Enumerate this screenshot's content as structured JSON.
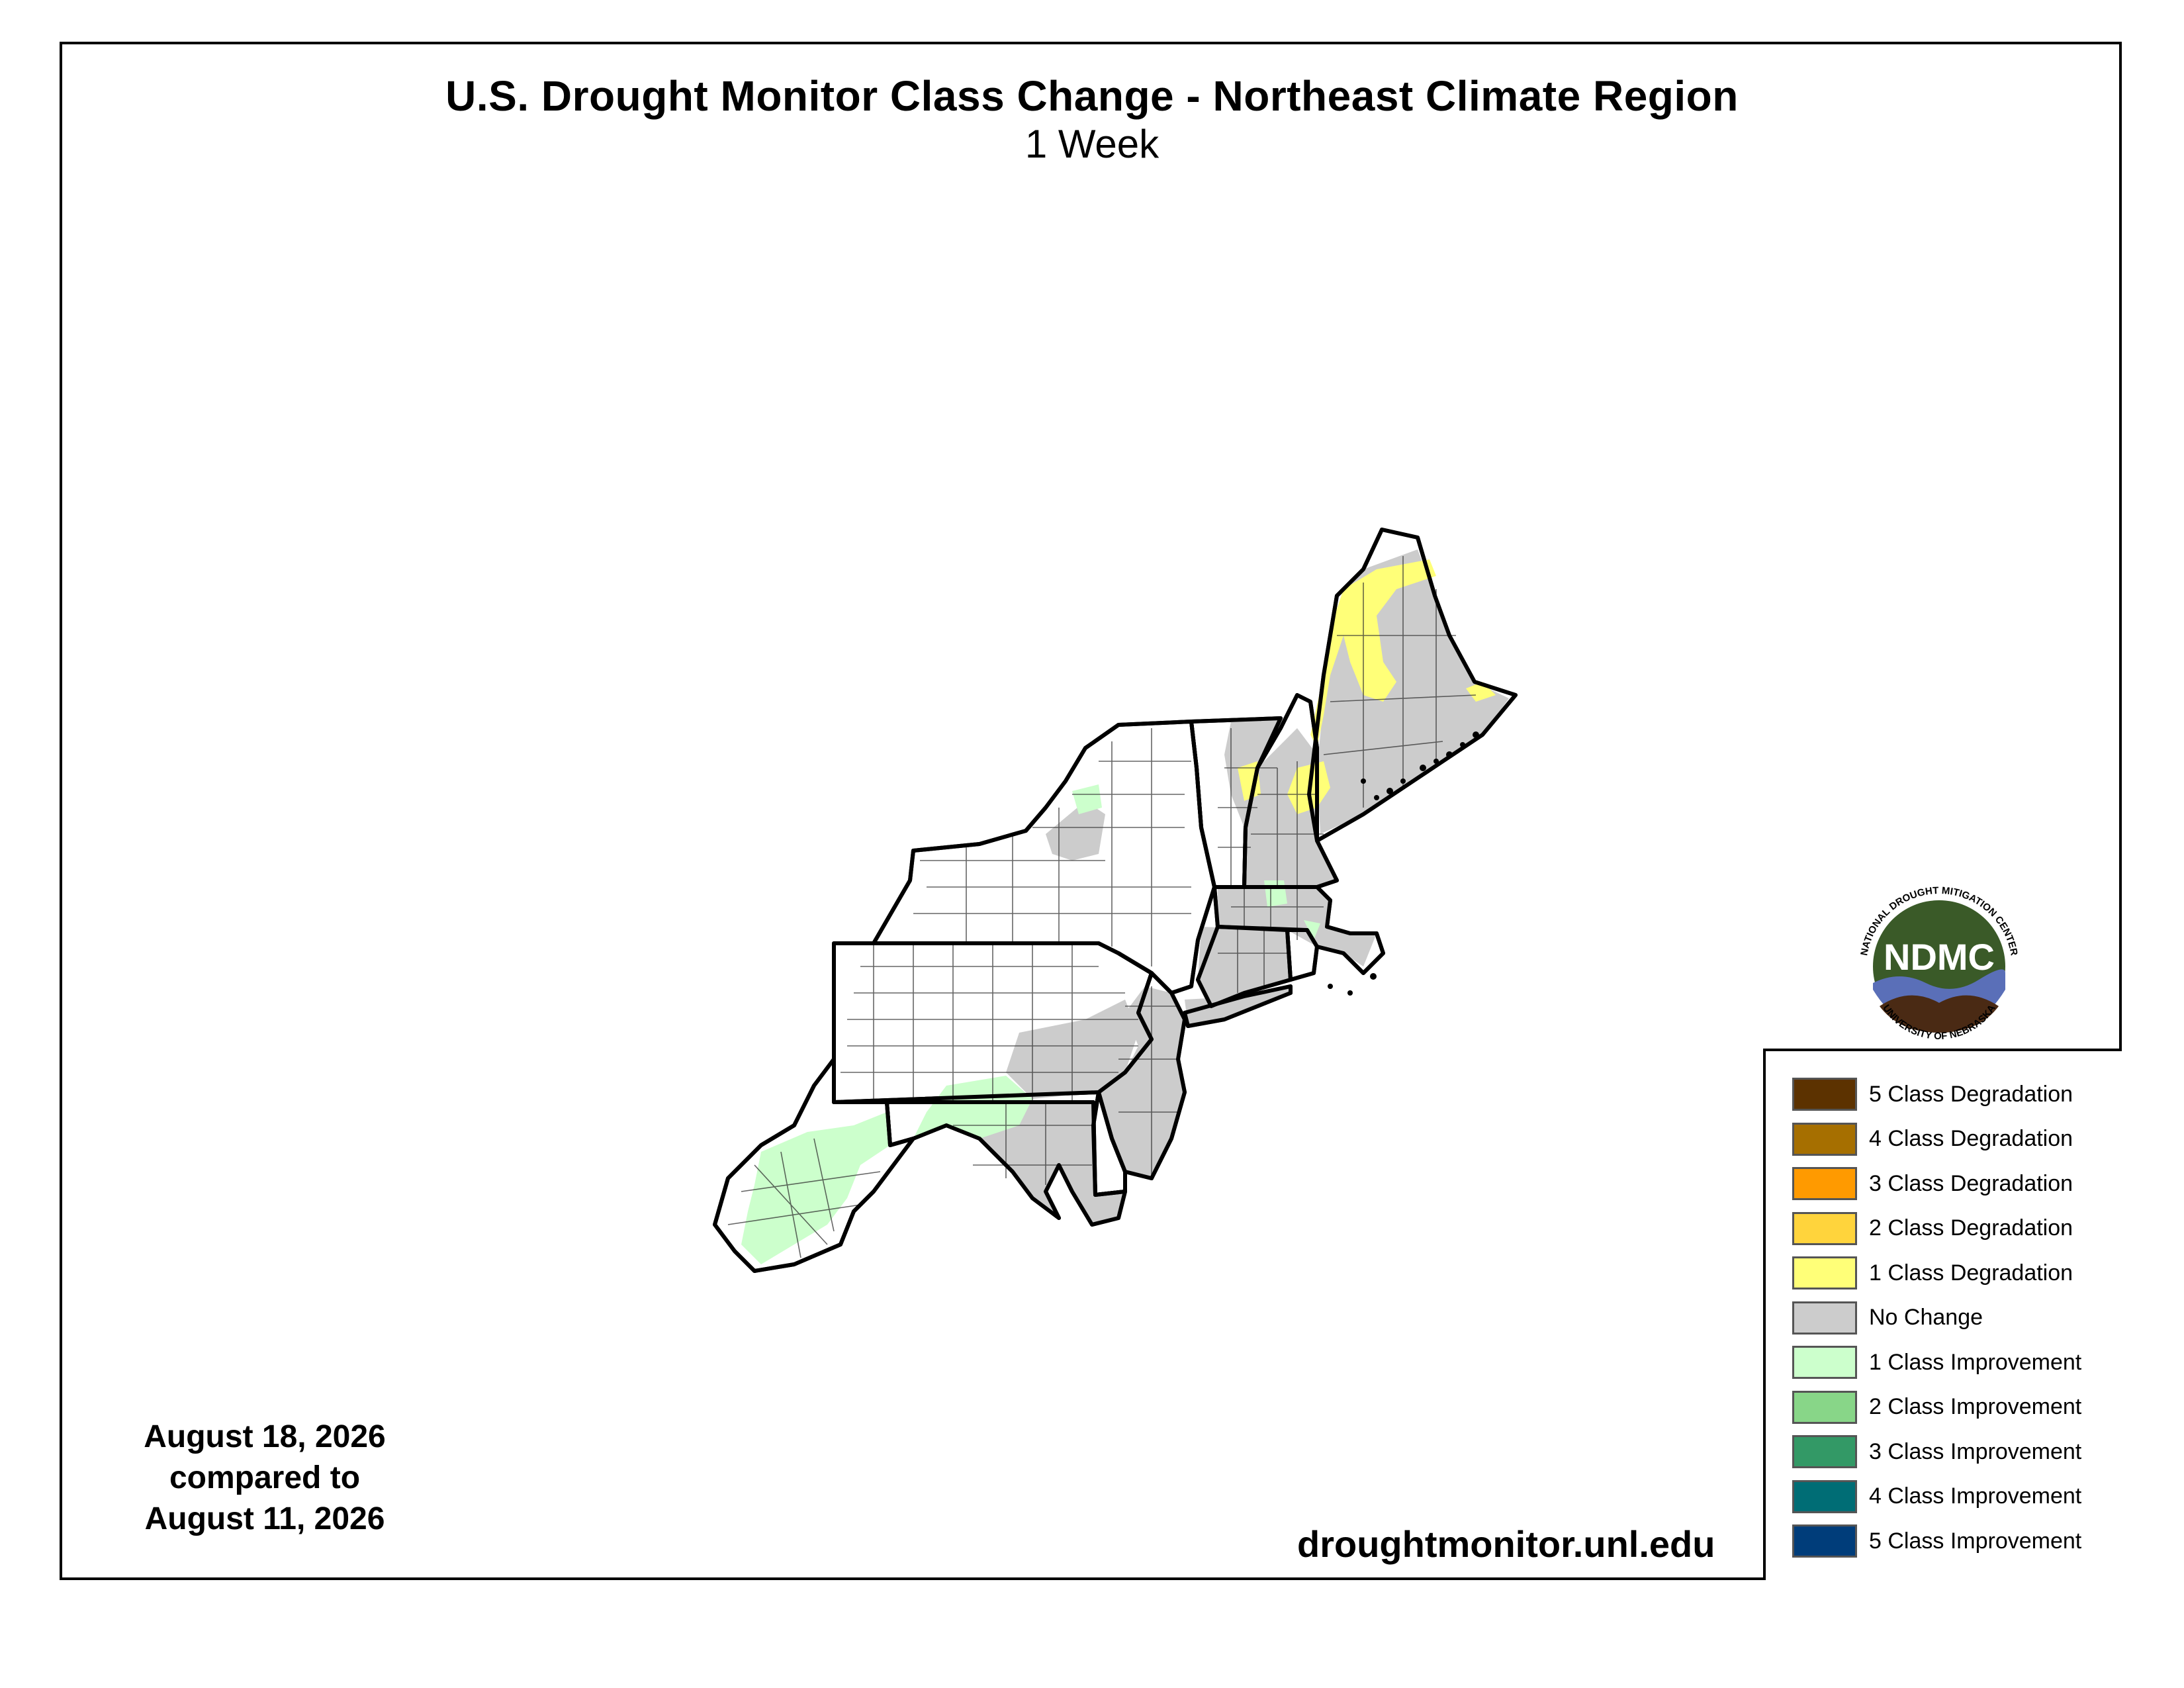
{
  "header": {
    "title": "U.S. Drought Monitor Class Change - Northeast Climate Region",
    "subtitle": "1 Week"
  },
  "dates": {
    "line1": "August 18, 2026",
    "line2": "compared to",
    "line3": "August 11, 2026"
  },
  "website": "droughtmonitor.unl.edu",
  "logo": {
    "abbr": "NDMC",
    "top_text": "NATIONAL DROUGHT MITIGATION CENTER",
    "bottom_text": "UNIVERSITY OF NEBRASKA"
  },
  "legend": {
    "items": [
      {
        "label": "5 Class Degradation",
        "color": "#5c3200"
      },
      {
        "label": "4 Class Degradation",
        "color": "#a66f00"
      },
      {
        "label": "3 Class Degradation",
        "color": "#ff9a00"
      },
      {
        "label": "2 Class Degradation",
        "color": "#ffd43c"
      },
      {
        "label": "1 Class Degradation",
        "color": "#ffff78"
      },
      {
        "label": "No Change",
        "color": "#cccccc"
      },
      {
        "label": "1 Class Improvement",
        "color": "#ccffcc"
      },
      {
        "label": "2 Class Improvement",
        "color": "#88d688"
      },
      {
        "label": "3 Class Improvement",
        "color": "#339966"
      },
      {
        "label": "4 Class Improvement",
        "color": "#006d75"
      },
      {
        "label": "5 Class Improvement",
        "color": "#003d7a"
      }
    ]
  },
  "map_colors": {
    "no_change": "#cccccc",
    "degradation_1": "#ffff78",
    "improvement_1": "#ccffcc",
    "land": "#ffffff",
    "border": "#000000"
  }
}
